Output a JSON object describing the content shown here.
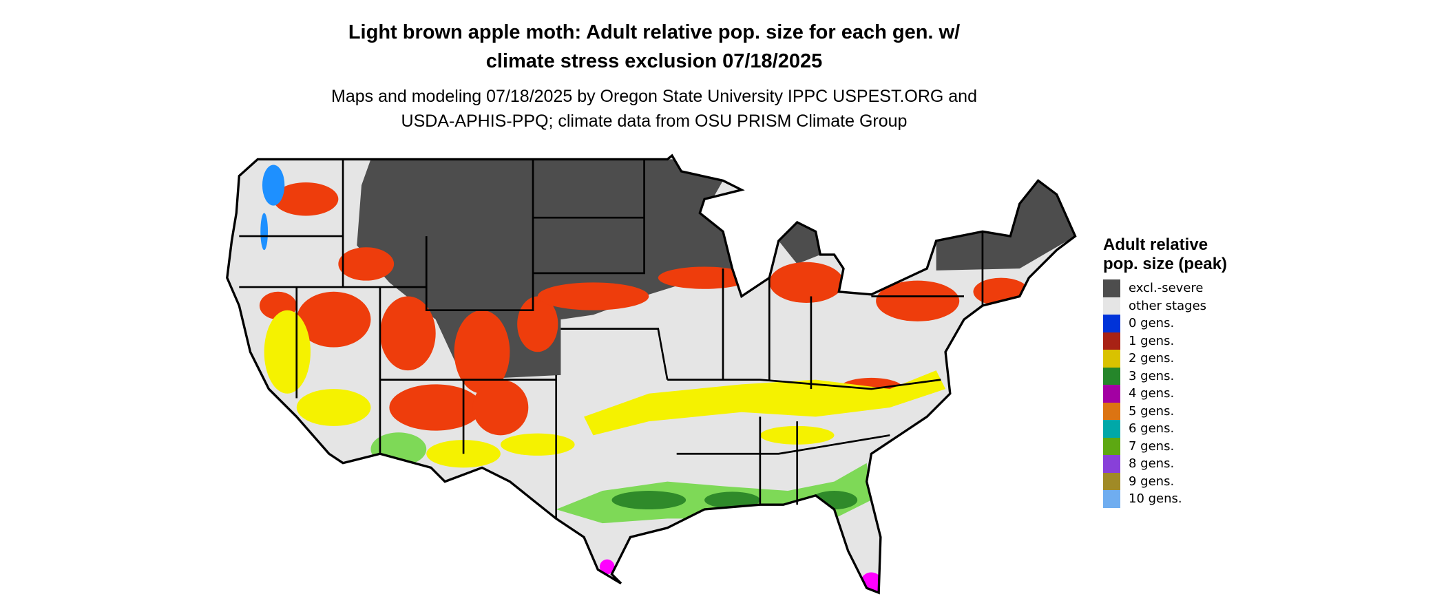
{
  "title": {
    "line1": "Light brown apple moth: Adult relative pop. size for each gen. w/",
    "line2": "climate stress exclusion 07/18/2025"
  },
  "subtitle": {
    "line1": "Maps and modeling 07/18/2025 by Oregon State University IPPC USPEST.ORG and",
    "line2": "USDA-APHIS-PPQ; climate data from OSU PRISM Climate Group"
  },
  "legend": {
    "title": "Adult relative pop. size (peak)",
    "items": [
      {
        "label": "excl.-severe",
        "color": "#4d4d4d"
      },
      {
        "label": "other stages",
        "color": "#e5e5e5"
      },
      {
        "label": "0 gens.",
        "color": "#0033d9"
      },
      {
        "label": "1 gens.",
        "color": "#a82215"
      },
      {
        "label": "2 gens.",
        "color": "#d9c200"
      },
      {
        "label": "3 gens.",
        "color": "#25862a"
      },
      {
        "label": "4 gens.",
        "color": "#a300a3"
      },
      {
        "label": "5 gens.",
        "color": "#dc7412"
      },
      {
        "label": "6 gens.",
        "color": "#00a8a8"
      },
      {
        "label": "7 gens.",
        "color": "#5da812"
      },
      {
        "label": "8 gens.",
        "color": "#8840d9"
      },
      {
        "label": "9 gens.",
        "color": "#a08a26"
      },
      {
        "label": "10 gens.",
        "color": "#6fadf0"
      }
    ]
  },
  "map_colors": {
    "land": "#e5e5e5",
    "excluded": "#4d4d4d",
    "stress_red": "#ee3d0c",
    "yellow": "#f5f200",
    "green_light": "#7ed957",
    "green_dark": "#2f8a2a",
    "magenta": "#ff00ff",
    "blue": "#1e90ff",
    "border": "#000000"
  }
}
